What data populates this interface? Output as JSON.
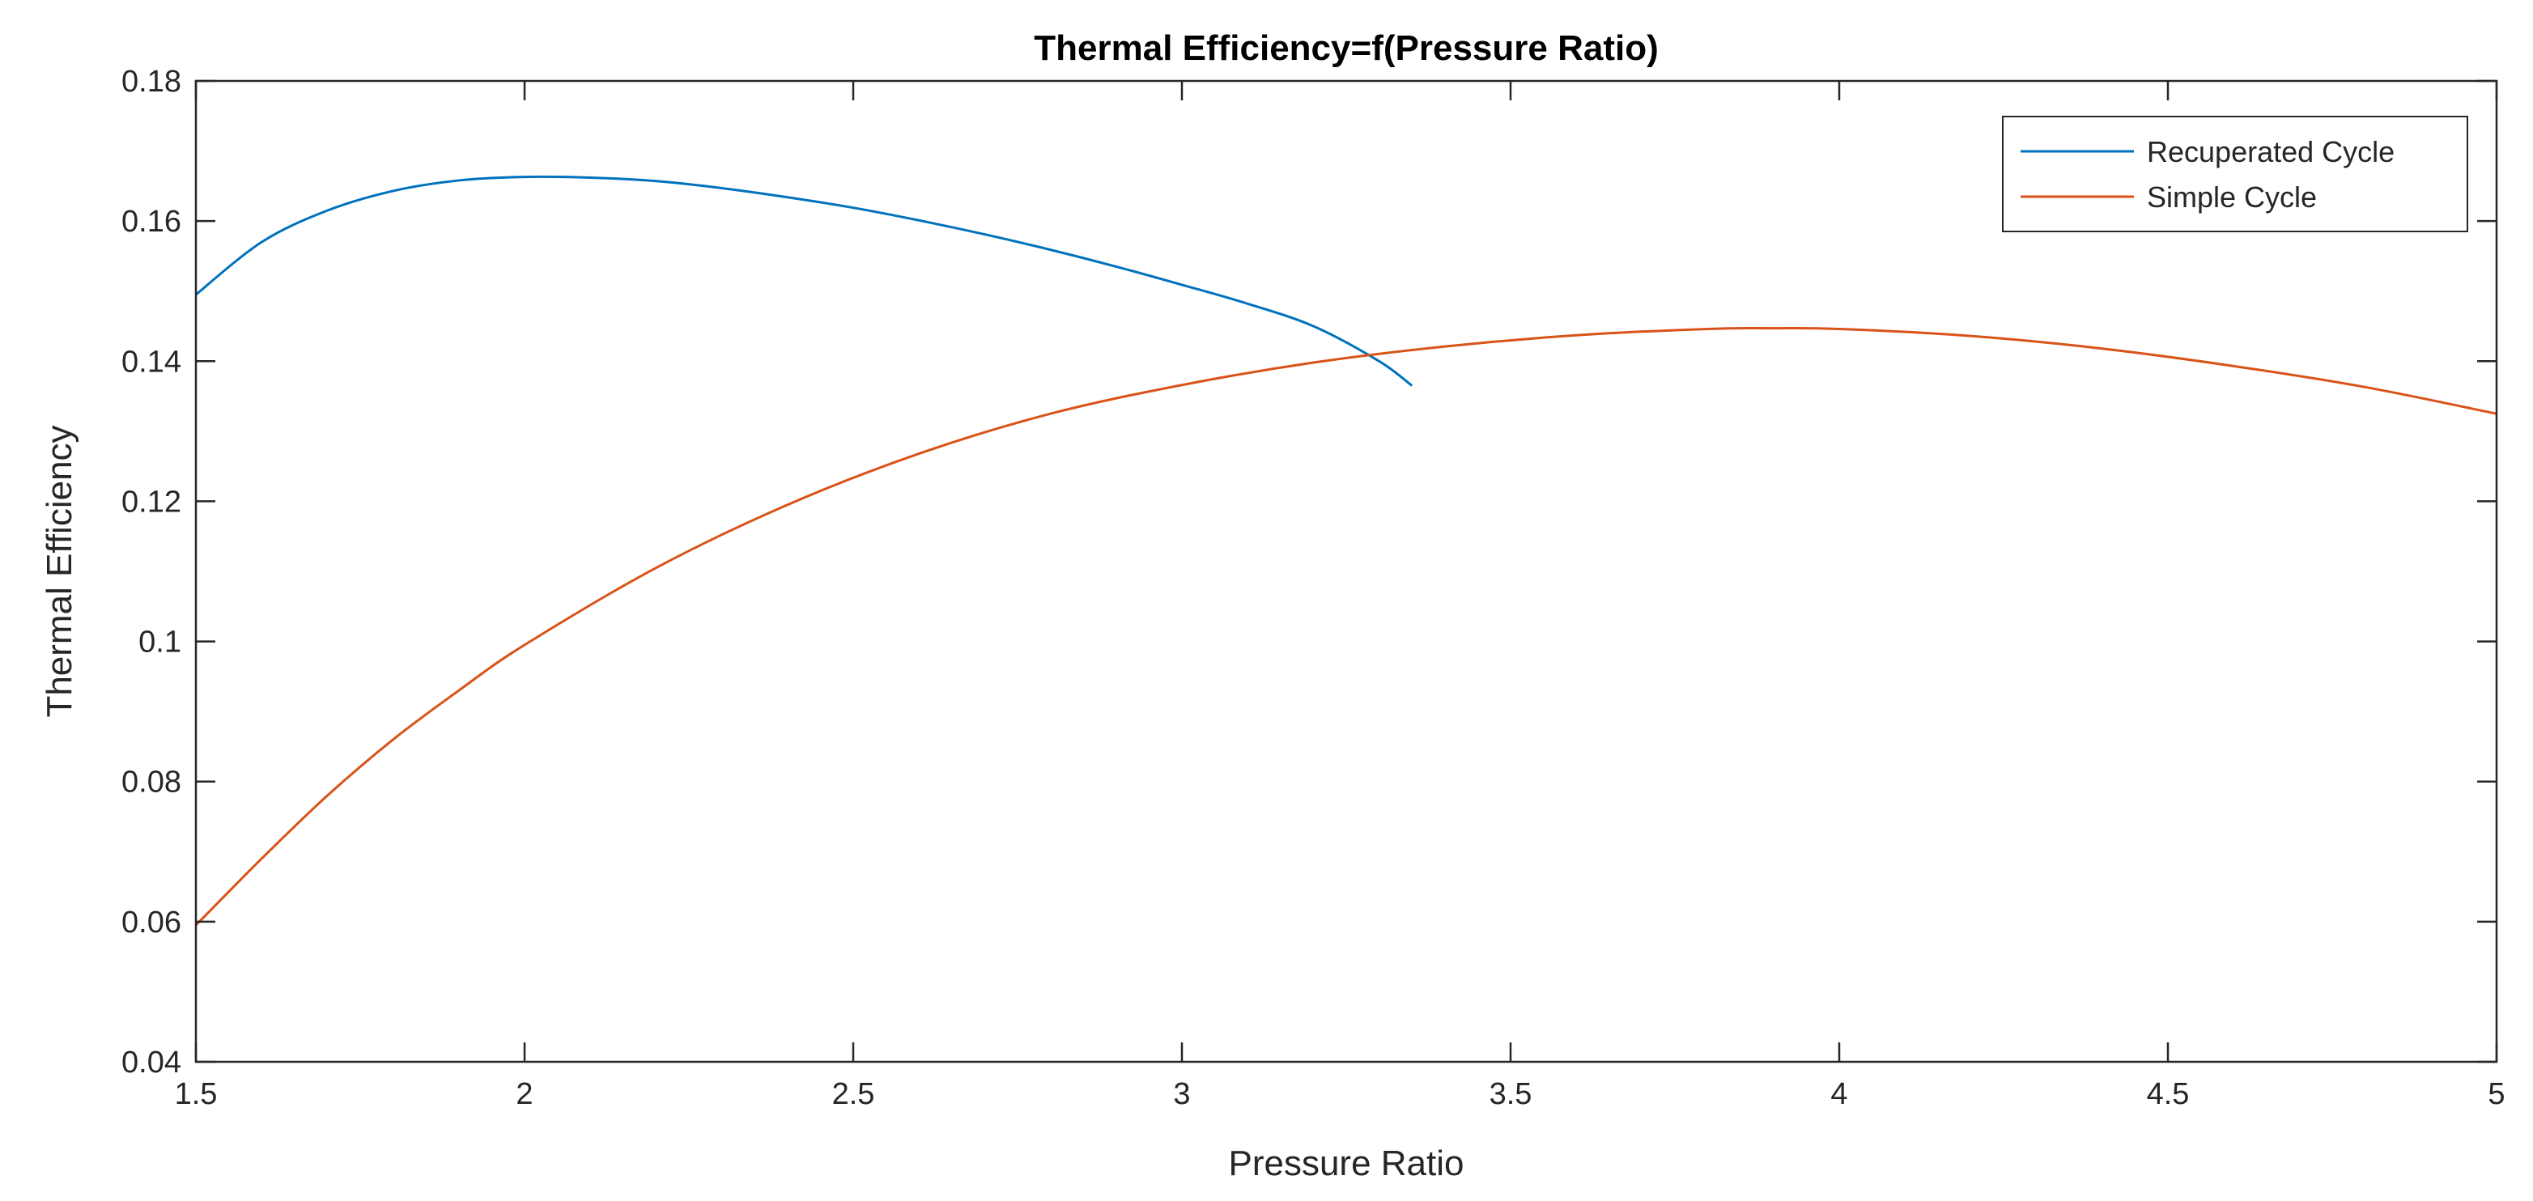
{
  "chart_data": {
    "type": "line",
    "title": "Thermal Efficiency=f(Pressure Ratio)",
    "xlabel": "Pressure Ratio",
    "ylabel": "Thermal Efficiency",
    "xlim": [
      1.5,
      5
    ],
    "ylim": [
      0.04,
      0.18
    ],
    "xticks": [
      1.5,
      2,
      2.5,
      3,
      3.5,
      4,
      4.5,
      5
    ],
    "xtick_labels": [
      "1.5",
      "2",
      "2.5",
      "3",
      "3.5",
      "4",
      "4.5",
      "5"
    ],
    "yticks": [
      0.04,
      0.06,
      0.08,
      0.1,
      0.12,
      0.14,
      0.16,
      0.18
    ],
    "ytick_labels": [
      "0.04",
      "0.06",
      "0.08",
      "0.1",
      "0.12",
      "0.14",
      "0.16",
      "0.18"
    ],
    "grid": false,
    "legend_position": "top-right",
    "series": [
      {
        "name": "Recuperated Cycle",
        "color": "#0072BD",
        "x": [
          1.5,
          1.6,
          1.7,
          1.8,
          1.9,
          2.0,
          2.1,
          2.2,
          2.3,
          2.4,
          2.5,
          2.6,
          2.7,
          2.8,
          2.9,
          3.0,
          3.1,
          3.2,
          3.3,
          3.35
        ],
        "y": [
          0.1495,
          0.157,
          0.1615,
          0.1643,
          0.1658,
          0.1663,
          0.1662,
          0.1657,
          0.1647,
          0.1634,
          0.1619,
          0.1601,
          0.1581,
          0.1559,
          0.1535,
          0.1509,
          0.1482,
          0.145,
          0.14,
          0.1365
        ]
      },
      {
        "name": "Simple Cycle",
        "color": "#D95319",
        "x": [
          1.5,
          1.6,
          1.7,
          1.8,
          1.9,
          2.0,
          2.2,
          2.4,
          2.6,
          2.8,
          3.0,
          3.2,
          3.4,
          3.6,
          3.8,
          3.9,
          4.0,
          4.2,
          4.4,
          4.6,
          4.8,
          5.0
        ],
        "y": [
          0.0595,
          0.069,
          0.078,
          0.086,
          0.093,
          0.0995,
          0.1105,
          0.1195,
          0.1268,
          0.1325,
          0.1366,
          0.1398,
          0.1421,
          0.1437,
          0.1446,
          0.1447,
          0.1446,
          0.1436,
          0.1418,
          0.1393,
          0.1363,
          0.1325
        ]
      }
    ]
  }
}
